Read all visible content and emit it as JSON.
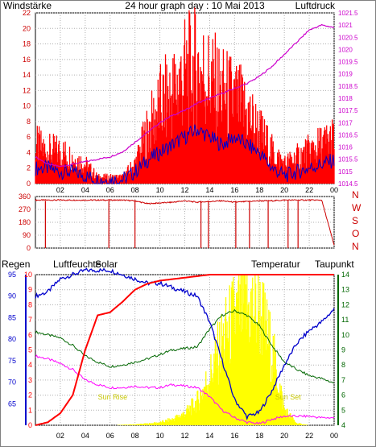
{
  "header": {
    "left": "Windstärke",
    "center": "24 hour graph day : 10 Mai 2013",
    "right": "Luftdruck"
  },
  "colors": {
    "wind": "#ff0000",
    "speed_line": "#0000cc",
    "pressure": "#cc00cc",
    "axis_left_top": "#cc0000",
    "axis_right_top": "#cc00cc",
    "direction": "#cc0000",
    "rain": "#ff0000",
    "humidity": "#0000cc",
    "solar": "#ffff00",
    "temperature": "#006600",
    "dewpoint": "#ff00ff",
    "grid": "#b0b0b0"
  },
  "bottom_labels": {
    "rain": "Regen",
    "humidity": "Luftfeuchte",
    "solar": "Solar",
    "temperature": "Temperatur",
    "dewpoint": "Taupunkt",
    "sunrise": "Sun Rise",
    "sunset": "Sun Set"
  },
  "chart_data": [
    {
      "type": "bar",
      "panel": "wind",
      "ylim": [
        0,
        22
      ],
      "yticks": [
        "0",
        "2",
        "4",
        "6",
        "8",
        "10",
        "12",
        "14",
        "16",
        "18",
        "20",
        "22"
      ],
      "right_ylim": [
        1014.5,
        1021.5
      ],
      "right_yticks": [
        "1014.5",
        "1015",
        "1015.5",
        "1016",
        "1016.5",
        "1017",
        "1017.5",
        "1018",
        "1018.5",
        "1019",
        "1019.5",
        "1020",
        "1020.5",
        "1021",
        "1021.5"
      ],
      "xlim": [
        0,
        24
      ],
      "xticks": [
        "02",
        "04",
        "06",
        "08",
        "10",
        "12",
        "14",
        "16",
        "18",
        "20",
        "22",
        "00"
      ],
      "x": [
        0,
        1,
        2,
        3,
        4,
        5,
        6,
        7,
        8,
        9,
        10,
        11,
        12,
        13,
        14,
        15,
        16,
        17,
        18,
        19,
        20,
        21,
        22,
        23,
        24
      ],
      "series": [
        {
          "values": [
            6,
            5,
            5,
            4,
            3,
            1,
            1,
            1,
            3,
            8,
            12,
            14,
            17,
            18,
            16,
            14,
            13,
            11,
            8,
            5,
            3,
            4,
            5,
            6,
            7
          ]
        },
        {
          "values": [
            2,
            2,
            1.5,
            1.5,
            1,
            0.5,
            0.5,
            0.5,
            1.5,
            3,
            4,
            5,
            6,
            7,
            6,
            5,
            6,
            5,
            4,
            2,
            1,
            1.5,
            2,
            2.5,
            3
          ]
        },
        {
          "values": [
            1015.6,
            1015.3,
            1015.2,
            1015.3,
            1015.4,
            1015.5,
            1015.6,
            1015.8,
            1016.2,
            1016.6,
            1017.0,
            1017.3,
            1017.5,
            1017.8,
            1018.0,
            1018.2,
            1018.4,
            1018.6,
            1018.9,
            1019.3,
            1019.8,
            1020.3,
            1020.8,
            1021.0,
            1020.9
          ]
        }
      ]
    },
    {
      "type": "line",
      "panel": "wind_direction",
      "ylim": [
        0,
        360
      ],
      "yticks": [
        "0",
        "90",
        "180",
        "270",
        "360"
      ],
      "right_labels": [
        "N",
        "W",
        "S",
        "O",
        "N"
      ],
      "x": [
        0,
        1,
        2,
        3,
        4,
        5,
        6,
        7,
        8,
        9,
        10,
        11,
        12,
        13,
        14,
        15,
        16,
        17,
        18,
        19,
        20,
        21,
        22,
        23,
        24
      ],
      "values": [
        335,
        335,
        335,
        335,
        335,
        335,
        335,
        335,
        330,
        310,
        315,
        320,
        330,
        320,
        325,
        330,
        320,
        325,
        330,
        330,
        335,
        335,
        335,
        335,
        20
      ]
    },
    {
      "type": "line",
      "panel": "weather",
      "left_outer_ylim": [
        0,
        10
      ],
      "left_outer_yticks": [
        "0",
        "1",
        "2",
        "3",
        "4",
        "5",
        "6",
        "7",
        "8",
        "9",
        "10"
      ],
      "left_inner_ylim": [
        60,
        95
      ],
      "left_inner_yticks": [
        "65",
        "70",
        "75",
        "80",
        "85",
        "90",
        "95"
      ],
      "right_ylim": [
        4,
        14
      ],
      "right_yticks": [
        "4",
        "5",
        "6",
        "7",
        "8",
        "9",
        "10",
        "11",
        "12",
        "13",
        "14"
      ],
      "x": [
        0,
        1,
        2,
        3,
        4,
        5,
        6,
        7,
        8,
        9,
        10,
        11,
        12,
        13,
        14,
        15,
        16,
        17,
        18,
        19,
        20,
        21,
        22,
        23,
        24
      ],
      "series": [
        {
          "values": [
            0,
            0.2,
            0.8,
            2,
            5,
            7.3,
            7.5,
            8.2,
            9,
            9.4,
            9.6,
            9.7,
            9.8,
            9.9,
            10,
            10,
            10,
            10,
            10,
            10,
            10,
            10,
            10,
            10,
            10
          ]
        },
        {
          "values": [
            90,
            91,
            94,
            95,
            96,
            96,
            96,
            95,
            94,
            93,
            93,
            92,
            91,
            90,
            84,
            75,
            66,
            62,
            63,
            68,
            74,
            79,
            82,
            84,
            87
          ]
        },
        {
          "values": [
            0,
            0,
            0,
            0,
            0,
            0,
            0,
            2,
            4,
            8,
            14,
            30,
            60,
            120,
            250,
            420,
            550,
            600,
            580,
            380,
            80,
            10,
            0,
            0,
            0
          ]
        },
        {
          "values": [
            10.2,
            10.0,
            9.8,
            9.3,
            8.6,
            8.2,
            7.9,
            8.0,
            8.2,
            8.4,
            8.7,
            9.0,
            9.1,
            9.2,
            10.4,
            11.3,
            11.6,
            11.3,
            10.6,
            9.3,
            8.2,
            7.7,
            7.3,
            7.1,
            6.8
          ]
        },
        {
          "values": [
            8.6,
            8.4,
            8.1,
            7.7,
            7.0,
            6.7,
            6.5,
            6.5,
            6.6,
            6.5,
            6.5,
            6.7,
            6.6,
            6.5,
            5.9,
            5.0,
            4.5,
            4.2,
            4.1,
            4.4,
            4.6,
            4.6,
            4.6,
            4.5,
            4.5
          ]
        }
      ]
    }
  ]
}
